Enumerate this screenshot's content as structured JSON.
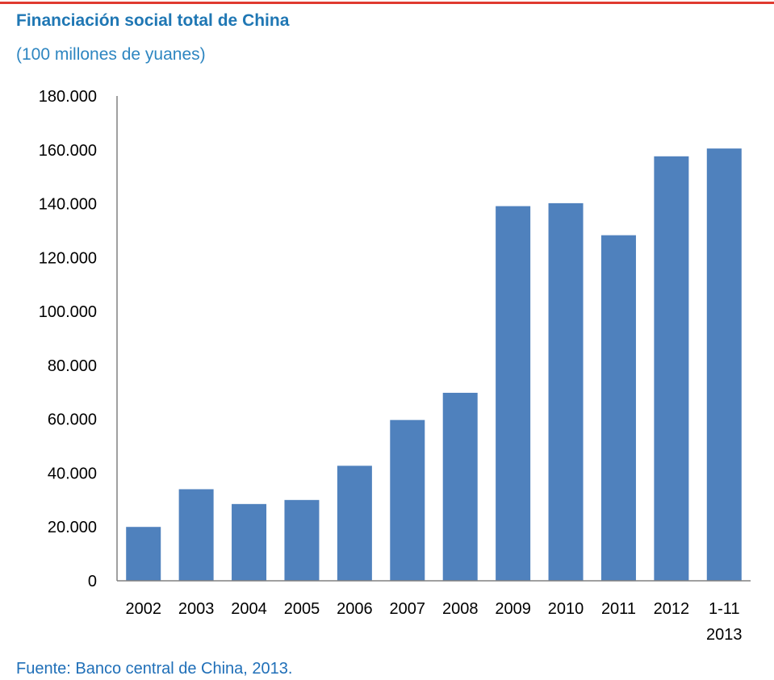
{
  "colors": {
    "top_rule": "#e03a2f",
    "title": "#1f77b4",
    "subtitle": "#2e86c1",
    "source": "#1f6fb8",
    "bar": "#4f81bd",
    "axis": "#808080"
  },
  "title": "Financiación social total de China",
  "subtitle": "(100 millones de yuanes)",
  "source": "Fuente: Banco central de China, 2013.",
  "chart_data": {
    "type": "bar",
    "title": "Financiación social total de China",
    "subtitle": "(100 millones de yuanes)",
    "xlabel": "",
    "ylabel": "",
    "categories": [
      "2002",
      "2003",
      "2004",
      "2005",
      "2006",
      "2007",
      "2008",
      "2009",
      "2010",
      "2011",
      "2012",
      "1-11 2013"
    ],
    "category_lines": [
      [
        "2002"
      ],
      [
        "2003"
      ],
      [
        "2004"
      ],
      [
        "2005"
      ],
      [
        "2006"
      ],
      [
        "2007"
      ],
      [
        "2008"
      ],
      [
        "2009"
      ],
      [
        "2010"
      ],
      [
        "2011"
      ],
      [
        "2012"
      ],
      [
        "1-11",
        "2013"
      ]
    ],
    "values": [
      20000,
      34000,
      28500,
      30000,
      42700,
      59700,
      69800,
      139100,
      140200,
      128300,
      157600,
      160500
    ],
    "ylim": [
      0,
      180000
    ],
    "yticks": [
      0,
      20000,
      40000,
      60000,
      80000,
      100000,
      120000,
      140000,
      160000,
      180000
    ],
    "ytick_labels": [
      "0",
      "20.000",
      "40.000",
      "60.000",
      "80.000",
      "100.000",
      "120.000",
      "140.000",
      "160.000",
      "180.000"
    ],
    "grid": false,
    "legend": "none"
  }
}
